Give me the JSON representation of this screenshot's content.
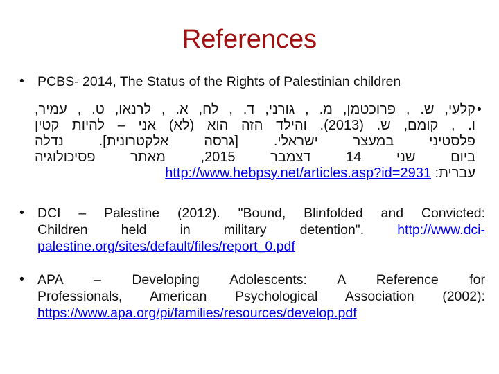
{
  "title": "References",
  "bullet": "•",
  "items": [
    {
      "lines": [
        "PCBS- 2014, The Status of the Rights of Palestinian children"
      ]
    },
    {
      "lines": [
        "קלעי, ש. , פרוכטמן, מ. , גורני, ד. , לח, א. , לרנאו, ט. , עמיר,",
        "ו. , קומם, ש. (2013). והילד הזה הוא (לא) אני – להיות קטין",
        "פלסטיני במעצר ישראלי. [גרסה אלקטרונית]. נדלה",
        "ביום שני 14 דצמבר 2015, מאתר פסיכולוגיה"
      ],
      "last_prefix": "עברית:",
      "link": "http://www.hebpsy.net/articles.asp?id=2931"
    },
    {
      "lines": [
        "DCI – Palestine (2012). \"Bound, Blinfolded and Convicted:"
      ],
      "line2": "Children held in military detention\".",
      "link_part1": "http://www.dci-",
      "link_part2": "palestine.org/sites/default/files/report_0.pdf"
    },
    {
      "lines": [
        "APA – Developing Adolescents: A Reference for",
        "Professionals, American Psychological Association (2002):"
      ],
      "link": "https://www.apa.org/pi/families/resources/develop.pdf"
    }
  ]
}
